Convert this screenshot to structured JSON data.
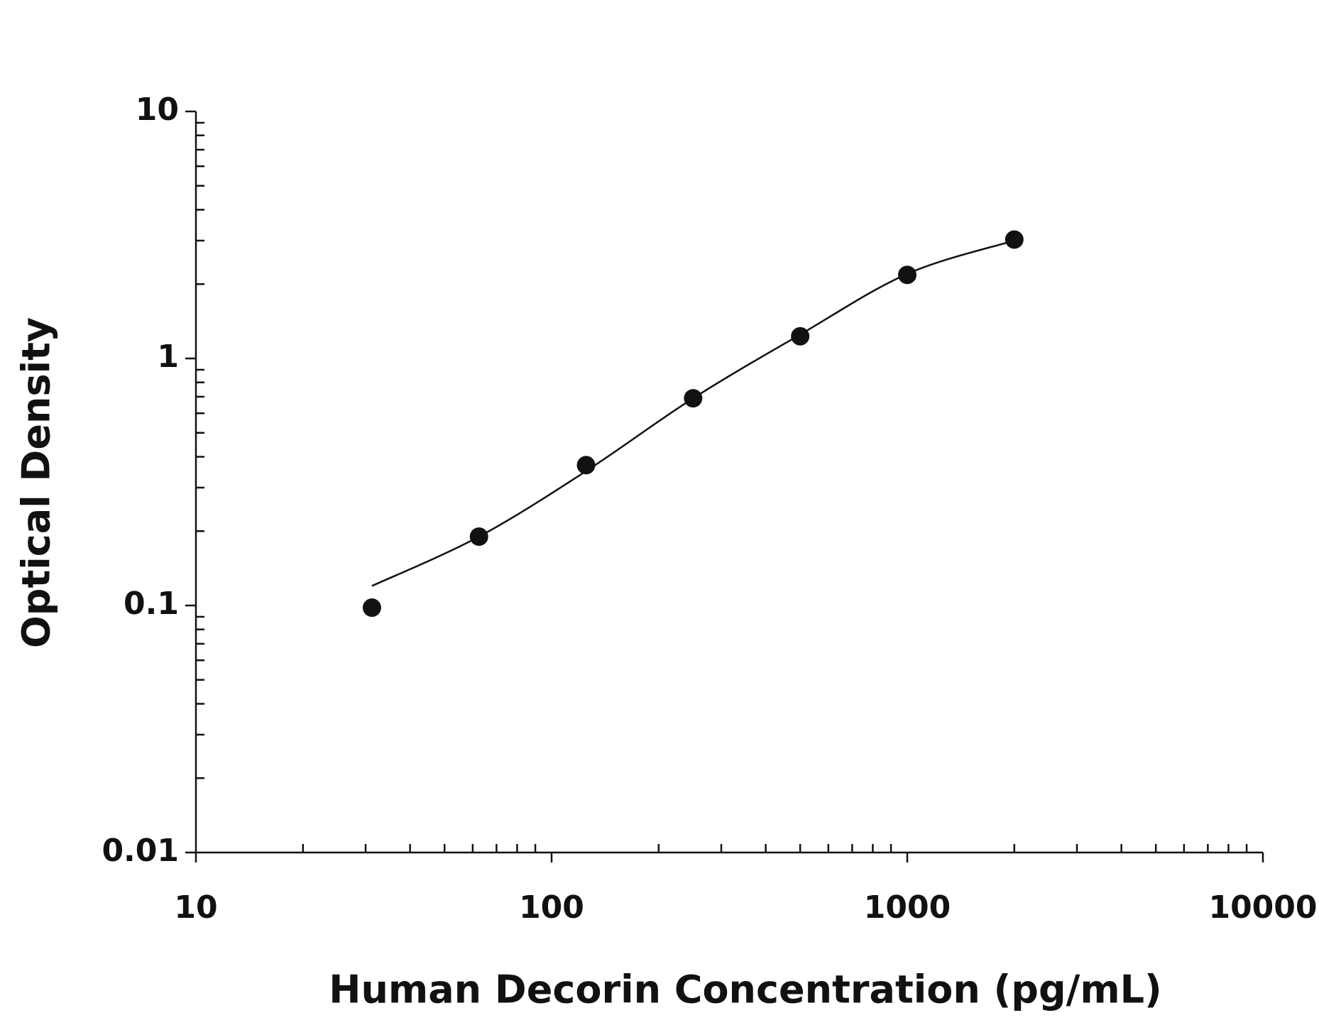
{
  "chart_data": {
    "type": "scatter",
    "x_label": "Human Decorin Concentration (pg/mL)",
    "y_label": "Optical Density",
    "x": [
      31.25,
      62.5,
      125,
      250,
      500,
      1000,
      2000
    ],
    "values": [
      0.098,
      0.19,
      0.37,
      0.69,
      1.23,
      2.18,
      3.03
    ],
    "color": "#111111",
    "fit": {
      "type": "line",
      "color": "#111111",
      "x": [
        31.25,
        62.5,
        125,
        250,
        500,
        1000,
        2000
      ],
      "values": [
        0.12,
        0.19,
        0.35,
        0.69,
        1.25,
        2.2,
        3.0
      ]
    },
    "xscale": "log",
    "yscale": "log",
    "xlim": [
      10,
      10000
    ],
    "xticks": [
      10,
      100,
      1000,
      10000
    ],
    "ylim": [
      0.01,
      10
    ],
    "yticks": [
      0.01,
      0.1,
      1,
      10
    ]
  }
}
